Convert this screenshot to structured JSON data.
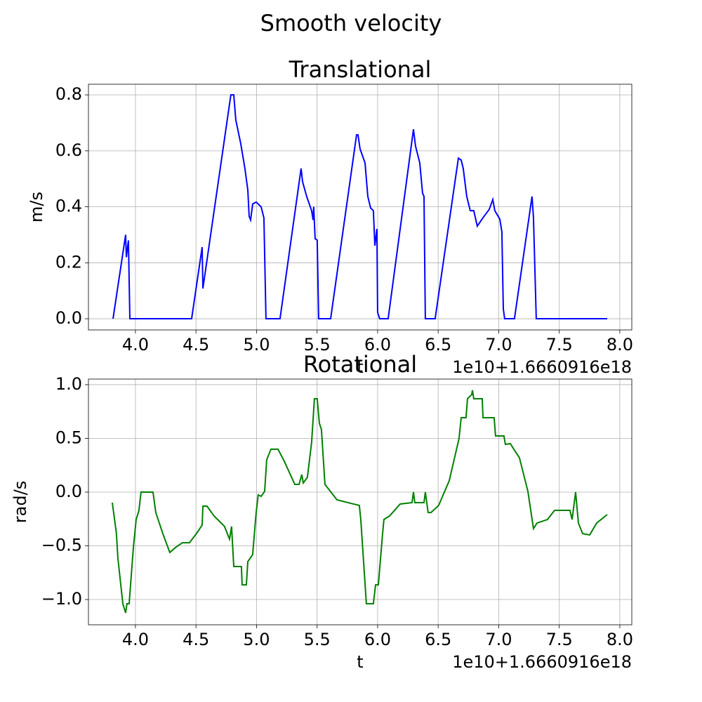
{
  "title": "Smooth velocity",
  "chart_data": [
    {
      "type": "line",
      "title": "Translational",
      "x_label": "t",
      "y_label": "m/s",
      "x_offset_label": "1e10+1.6660916e18",
      "xlim": [
        3.612,
        8.099
      ],
      "ylim": [
        -0.04,
        0.838
      ],
      "grid": true,
      "xticks": [
        {
          "value": 4,
          "label": "4.0"
        },
        4.5,
        {
          "value": 5,
          "label": "5.0"
        },
        5.5,
        {
          "value": 6,
          "label": "6.0"
        },
        6.5,
        {
          "value": 7,
          "label": "7.0"
        },
        7.5,
        {
          "value": 8,
          "label": "8.0"
        }
      ],
      "yticks": [
        {
          "value": 0,
          "label": "0.0"
        },
        0.2,
        0.4,
        0.6,
        0.8
      ],
      "x": [
        3.815,
        3.919,
        3.925,
        3.942,
        3.954,
        4.464,
        4.551,
        4.557,
        4.788,
        4.812,
        4.829,
        4.87,
        4.904,
        4.928,
        4.939,
        4.951,
        4.968,
        4.997,
        5.038,
        5.061,
        5.078,
        5.194,
        5.368,
        5.38,
        5.414,
        5.455,
        5.467,
        5.472,
        5.484,
        5.501,
        5.513,
        5.612,
        5.826,
        5.838,
        5.855,
        5.896,
        5.919,
        5.942,
        5.965,
        5.977,
        5.994,
        6.0,
        6.017,
        6.087,
        6.296,
        6.313,
        6.348,
        6.371,
        6.383,
        6.394,
        6.475,
        6.667,
        6.69,
        6.707,
        6.736,
        6.765,
        6.794,
        6.823,
        6.87,
        6.922,
        6.951,
        6.968,
        7.009,
        7.026,
        7.038,
        7.049,
        7.13,
        7.275,
        7.287,
        7.31,
        7.896
      ],
      "series": [
        {
          "color": "#0000ff",
          "values": [
            0,
            0.3,
            0.22,
            0.28,
            0,
            0,
            0.256,
            0.108,
            0.8,
            0.8,
            0.71,
            0.625,
            0.537,
            0.46,
            0.366,
            0.353,
            0.41,
            0.417,
            0.4,
            0.36,
            0,
            0,
            0.537,
            0.49,
            0.437,
            0.386,
            0.353,
            0.4,
            0.286,
            0.281,
            0,
            0,
            0.657,
            0.657,
            0.607,
            0.557,
            0.437,
            0.396,
            0.386,
            0.261,
            0.321,
            0.023,
            0,
            0,
            0.677,
            0.617,
            0.557,
            0.449,
            0.437,
            0,
            0,
            0.574,
            0.567,
            0.537,
            0.437,
            0.386,
            0.386,
            0.331,
            0.361,
            0.391,
            0.426,
            0.386,
            0.356,
            0.311,
            0.035,
            0,
            0,
            0.437,
            0.361,
            0,
            0
          ]
        }
      ]
    },
    {
      "type": "line",
      "title": "Rotational",
      "x_label": "t",
      "y_label": "rad/s",
      "x_offset_label": "1e10+1.6660916e18",
      "xlim": [
        3.612,
        8.099
      ],
      "ylim": [
        -1.235,
        1.052
      ],
      "grid": true,
      "xticks": [
        {
          "value": 4,
          "label": "4.0"
        },
        4.5,
        {
          "value": 5,
          "label": "5.0"
        },
        5.5,
        {
          "value": 6,
          "label": "6.0"
        },
        6.5,
        {
          "value": 7,
          "label": "7.0"
        },
        7.5,
        {
          "value": 8,
          "label": "8.0"
        }
      ],
      "yticks": [
        {
          "value": -1,
          "label": "−1.0"
        },
        {
          "value": -0.5,
          "label": "−0.5"
        },
        {
          "value": 0,
          "label": "0.0"
        },
        0.5,
        {
          "value": 1,
          "label": "1.0"
        }
      ],
      "x": [
        3.809,
        3.843,
        3.855,
        3.896,
        3.919,
        3.93,
        3.948,
        3.983,
        4.006,
        4.029,
        4.046,
        4.145,
        4.168,
        4.226,
        4.284,
        4.33,
        4.388,
        4.446,
        4.504,
        4.551,
        4.557,
        4.591,
        4.649,
        4.736,
        4.777,
        4.794,
        4.812,
        4.875,
        4.881,
        4.916,
        4.928,
        4.968,
        4.997,
        5.014,
        5.038,
        5.067,
        5.084,
        5.119,
        5.177,
        5.229,
        5.316,
        5.351,
        5.374,
        5.386,
        5.42,
        5.455,
        5.478,
        5.501,
        5.519,
        5.536,
        5.565,
        5.664,
        5.78,
        5.849,
        5.861,
        5.907,
        5.965,
        5.983,
        6.006,
        6.041,
        6.052,
        6.099,
        6.186,
        6.284,
        6.296,
        6.307,
        6.383,
        6.394,
        6.417,
        6.441,
        6.504,
        6.591,
        6.672,
        6.69,
        6.73,
        6.742,
        6.777,
        6.783,
        6.794,
        6.864,
        6.87,
        6.962,
        6.974,
        7.043,
        7.055,
        7.096,
        7.125,
        7.171,
        7.241,
        7.287,
        7.316,
        7.403,
        7.461,
        7.588,
        7.606,
        7.635,
        7.658,
        7.693,
        7.751,
        7.809,
        7.896
      ],
      "series": [
        {
          "color": "#008000",
          "values": [
            -0.098,
            -0.386,
            -0.614,
            -1.039,
            -1.124,
            -1.039,
            -1.039,
            -0.516,
            -0.255,
            -0.17,
            0,
            0,
            -0.19,
            -0.386,
            -0.562,
            -0.516,
            -0.471,
            -0.471,
            -0.386,
            -0.307,
            -0.131,
            -0.131,
            -0.222,
            -0.32,
            -0.438,
            -0.32,
            -0.693,
            -0.693,
            -0.863,
            -0.863,
            -0.647,
            -0.582,
            -0.19,
            -0.026,
            -0.039,
            0.007,
            0.301,
            0.399,
            0.399,
            0.288,
            0.072,
            0.072,
            0.163,
            0.085,
            0.137,
            0.464,
            0.869,
            0.869,
            0.641,
            0.582,
            0.072,
            -0.072,
            -0.105,
            -0.124,
            -0.255,
            -1.039,
            -1.039,
            -0.863,
            -0.863,
            -0.386,
            -0.255,
            -0.222,
            -0.111,
            -0.098,
            0,
            -0.098,
            -0.098,
            0,
            -0.19,
            -0.19,
            -0.124,
            0.105,
            0.497,
            0.693,
            0.693,
            0.869,
            0.908,
            0.948,
            0.869,
            0.869,
            0.693,
            0.693,
            0.523,
            0.523,
            0.444,
            0.451,
            0.399,
            0.32,
            0.007,
            -0.34,
            -0.288,
            -0.255,
            -0.17,
            -0.17,
            -0.255,
            0,
            -0.288,
            -0.386,
            -0.399,
            -0.288,
            -0.209
          ]
        }
      ]
    }
  ]
}
